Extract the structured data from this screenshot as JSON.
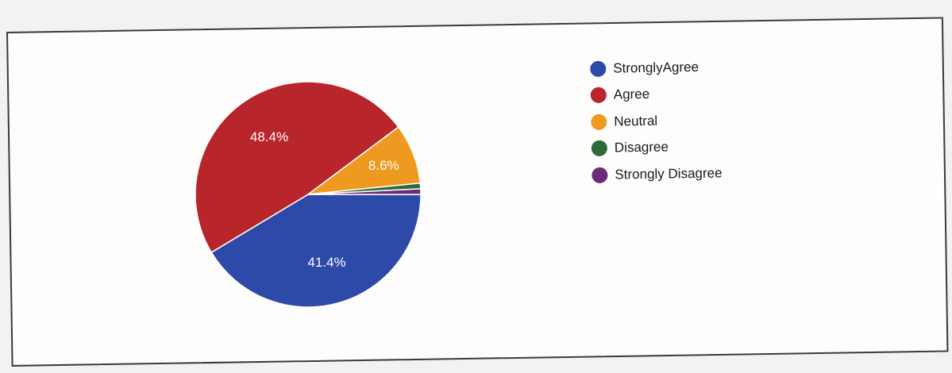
{
  "chart_data": {
    "type": "pie",
    "slices": [
      {
        "label": "StronglyAgree",
        "value": 41.4,
        "color": "#2d4aa8",
        "display": "41.4%"
      },
      {
        "label": "Agree",
        "value": 48.4,
        "color": "#b8262b",
        "display": "48.4%"
      },
      {
        "label": "Neutral",
        "value": 8.6,
        "color": "#ee9a20",
        "display": "8.6%"
      },
      {
        "label": "Disagree",
        "value": 0.8,
        "color": "#2f6a3a",
        "display": ""
      },
      {
        "label": "Strongly Disagree",
        "value": 0.8,
        "color": "#6b2a7a",
        "display": ""
      }
    ],
    "legend_position": "right"
  }
}
